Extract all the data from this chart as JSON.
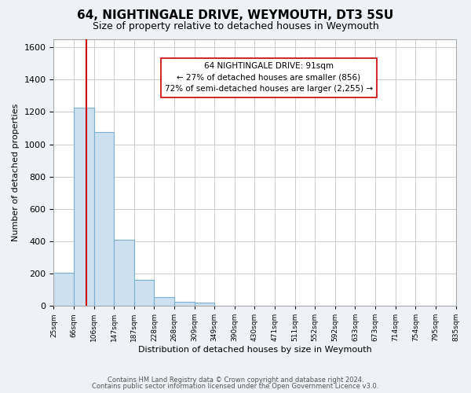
{
  "title": "64, NIGHTINGALE DRIVE, WEYMOUTH, DT3 5SU",
  "subtitle": "Size of property relative to detached houses in Weymouth",
  "xlabel": "Distribution of detached houses by size in Weymouth",
  "ylabel": "Number of detached properties",
  "footer_lines": [
    "Contains HM Land Registry data © Crown copyright and database right 2024.",
    "Contains public sector information licensed under the Open Government Licence v3.0."
  ],
  "tick_labels": [
    "25sqm",
    "66sqm",
    "106sqm",
    "147sqm",
    "187sqm",
    "228sqm",
    "268sqm",
    "309sqm",
    "349sqm",
    "390sqm",
    "430sqm",
    "471sqm",
    "511sqm",
    "552sqm",
    "592sqm",
    "633sqm",
    "673sqm",
    "714sqm",
    "754sqm",
    "795sqm",
    "835sqm"
  ],
  "bar_heights": [
    205,
    1225,
    1075,
    410,
    160,
    55,
    25,
    20,
    0,
    0,
    0,
    0,
    0,
    0,
    0,
    0,
    0,
    0,
    0,
    0
  ],
  "bar_color": "#cce0f0",
  "bar_edge_color": "#7aafd4",
  "annotation_box_text": "64 NIGHTINGALE DRIVE: 91sqm\n← 27% of detached houses are smaller (856)\n72% of semi-detached houses are larger (2,255) →",
  "vline_color": "#cc0000",
  "ylim": [
    0,
    1650
  ],
  "yticks": [
    0,
    200,
    400,
    600,
    800,
    1000,
    1200,
    1400,
    1600
  ],
  "bg_color": "#eef2f7",
  "plot_bg_color": "#ffffff",
  "grid_color": "#cccccc"
}
